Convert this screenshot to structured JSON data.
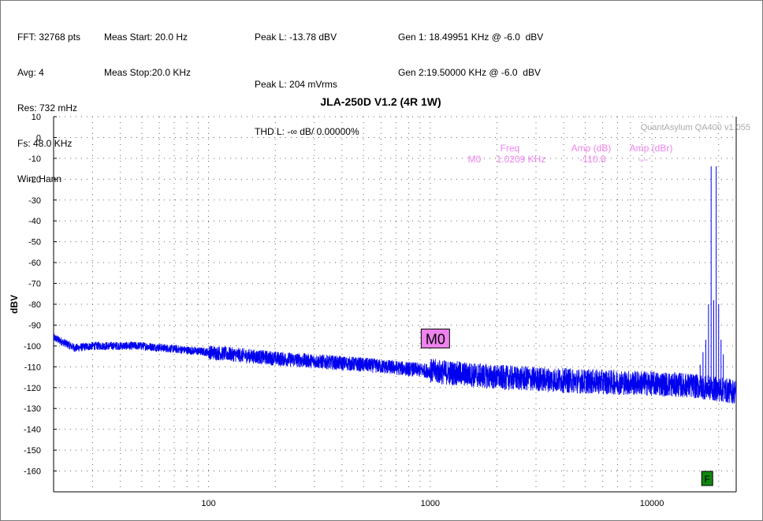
{
  "header": {
    "col1": [
      "FFT: 32768 pts",
      "Avg: 4",
      "Res: 732 mHz",
      "Fs: 48.0 KHz",
      "Win: Hann"
    ],
    "col2": [
      "Meas Start: 20.0 Hz",
      "Meas Stop:20.0 KHz"
    ],
    "col3": [
      "Peak L: -13.78 dBV",
      "Peak L: 204 mVrms",
      "THD L: -∞ dB/ 0.00000%"
    ],
    "col4": [
      "Gen 1: 18.49951 KHz @ -6.0  dBV",
      "Gen 2:19.50000 KHz @ -6.0  dBV"
    ]
  },
  "chart_data": {
    "type": "line",
    "title": "JLA-250D V1.2 (4R 1W)",
    "ylabel": "dBV",
    "xlabel": "",
    "xscale": "log",
    "xlim": [
      20,
      24000
    ],
    "ylim": [
      -170,
      10
    ],
    "x_tick_labels": [
      "100",
      "1000",
      "10000"
    ],
    "y_tick_labels": [
      "10",
      "0",
      "-10",
      "-20",
      "-30",
      "-40",
      "-50",
      "-60",
      "-70",
      "-80",
      "-90",
      "-100",
      "-110",
      "-120",
      "-130",
      "-140",
      "-150",
      "-160"
    ],
    "grid": true,
    "watermark": "QuantAsylum QA400 v1.055",
    "line_color": "#0000ee",
    "noise_floor": {
      "x": [
        20,
        25,
        30,
        50,
        100,
        200,
        500,
        1000,
        2000,
        5000,
        10000,
        15000,
        24000
      ],
      "y": [
        -96,
        -101,
        -100,
        -100,
        -103,
        -106,
        -109,
        -112,
        -115,
        -117,
        -118,
        -119,
        -122
      ]
    },
    "peaks": [
      {
        "x": 16500,
        "y": -109
      },
      {
        "x": 17000,
        "y": -103
      },
      {
        "x": 17500,
        "y": -97
      },
      {
        "x": 18000,
        "y": -80
      },
      {
        "x": 18499.51,
        "y": -13.78
      },
      {
        "x": 19000,
        "y": -78
      },
      {
        "x": 19500,
        "y": -13.8
      },
      {
        "x": 20000,
        "y": -80
      },
      {
        "x": 20500,
        "y": -97
      },
      {
        "x": 21000,
        "y": -104
      }
    ],
    "markers": [
      {
        "label": "M0",
        "x": 1020.9,
        "y": -110.8
      }
    ],
    "marker_table": {
      "headers": [
        "Freq",
        "Amp (dB)",
        "Amp (dBr)"
      ],
      "rows": [
        [
          "M0",
          "1.0209 KHz",
          "-110.8",
          "---"
        ]
      ],
      "color": "#ee82ee"
    },
    "f_marker": {
      "label": "F",
      "x": 18500
    }
  }
}
